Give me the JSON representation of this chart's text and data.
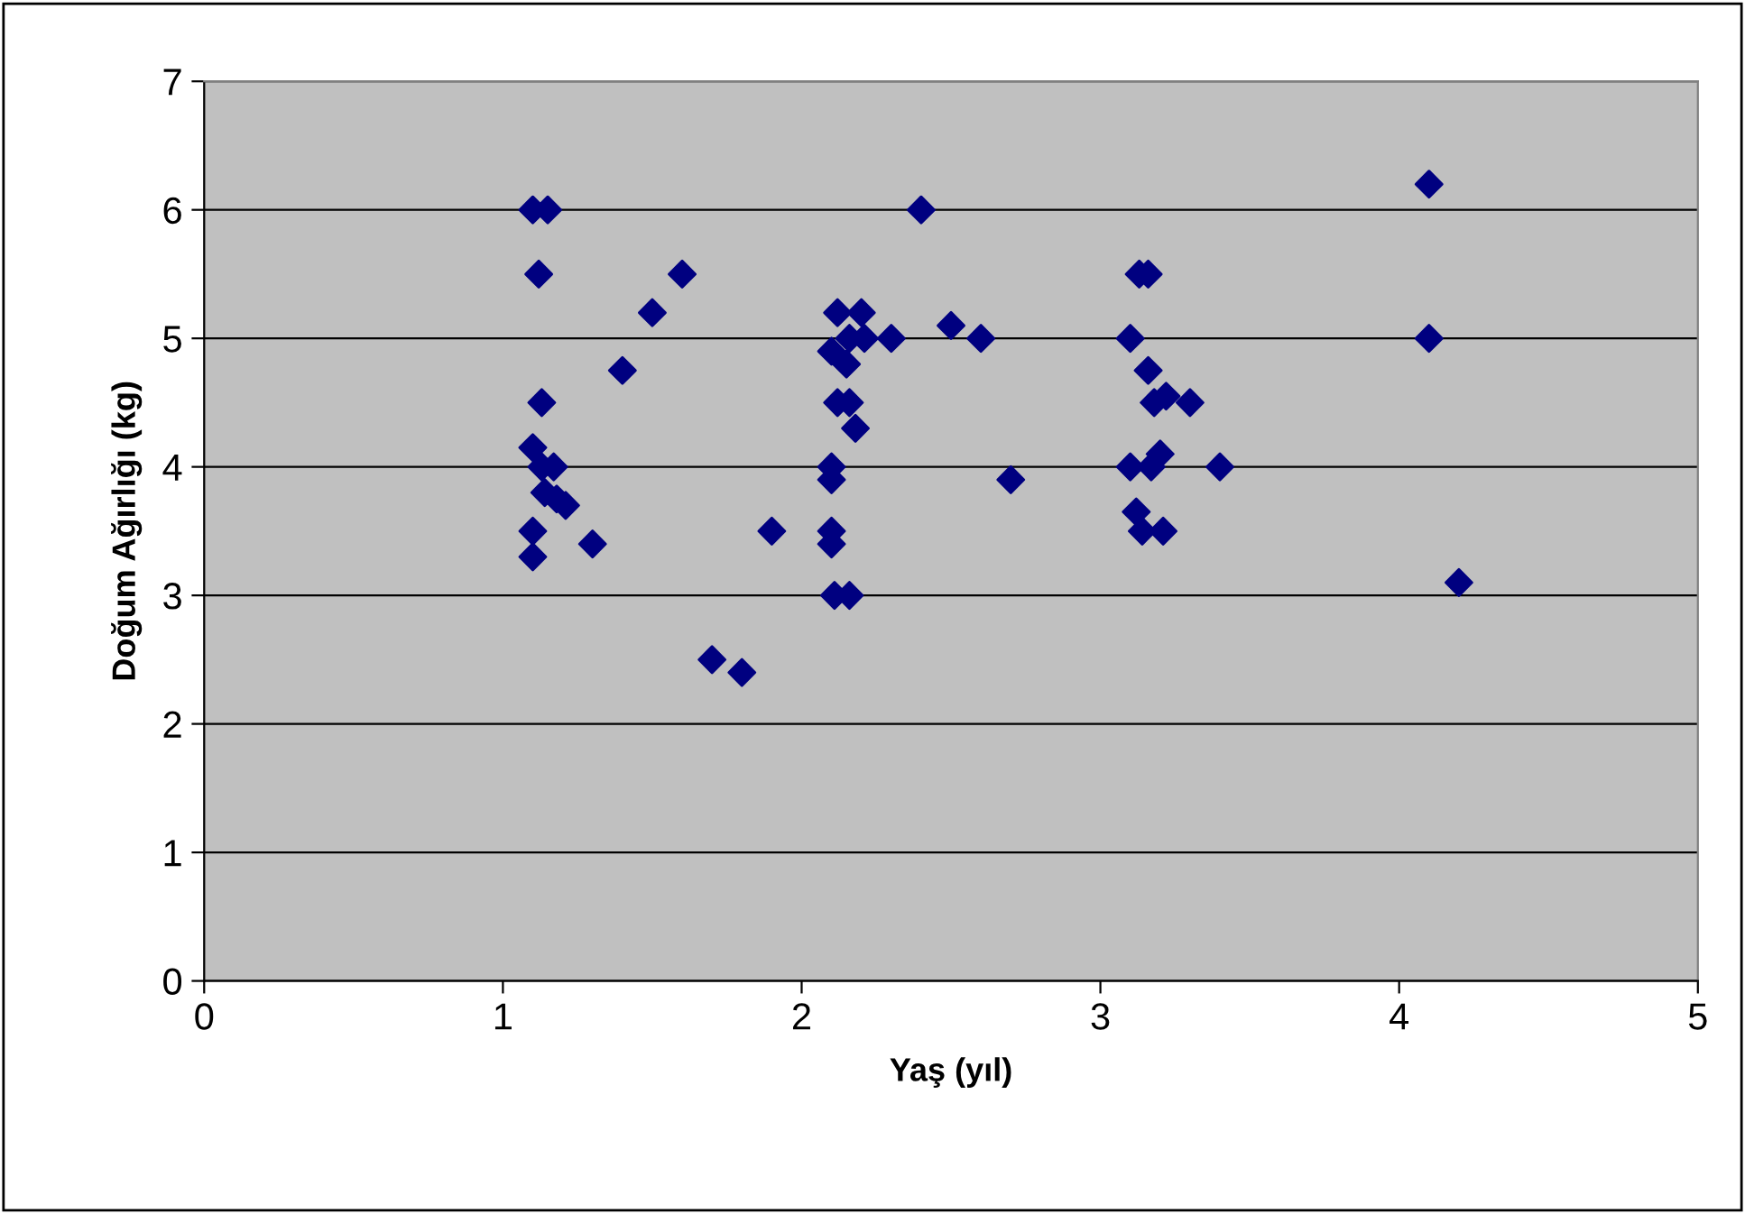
{
  "chart_data": {
    "type": "scatter",
    "xlabel": "Yaş (yıl)",
    "ylabel": "Doğum Ağırlığı (kg)",
    "xlim": [
      0,
      5
    ],
    "xticks": [
      0,
      1,
      2,
      3,
      4,
      5
    ],
    "ylim": [
      0,
      7
    ],
    "yticks": [
      0,
      1,
      2,
      3,
      4,
      5,
      6,
      7
    ],
    "grid": "y",
    "marker": "diamond",
    "legend": false,
    "series": [
      {
        "color": "#000080",
        "x": [
          1.1,
          1.15,
          1.12,
          1.5,
          1.6,
          1.4,
          1.13,
          1.1,
          1.13,
          1.17,
          1.14,
          1.18,
          1.21,
          1.1,
          1.1,
          1.3,
          1.9,
          1.7,
          1.8,
          2.4,
          2.12,
          2.2,
          2.1,
          2.16,
          2.15,
          2.21,
          2.3,
          2.5,
          2.6,
          2.12,
          2.16,
          2.18,
          2.1,
          2.1,
          2.7,
          2.1,
          2.1,
          2.11,
          2.16,
          4.1,
          3.13,
          3.16,
          3.1,
          4.1,
          3.16,
          3.18,
          3.22,
          3.3,
          3.1,
          3.17,
          3.2,
          3.4,
          3.12,
          3.14,
          3.21,
          4.2
        ],
        "values": [
          6,
          6,
          5.5,
          5.2,
          5.5,
          4.75,
          4.5,
          4.15,
          4.0,
          4.0,
          3.8,
          3.75,
          3.7,
          3.5,
          3.3,
          3.4,
          3.5,
          2.5,
          2.4,
          6,
          5.2,
          5.2,
          4.9,
          5.0,
          4.8,
          5.0,
          5.0,
          5.1,
          5.0,
          4.5,
          4.5,
          4.3,
          4.0,
          3.9,
          3.9,
          3.5,
          3.4,
          3.0,
          3.0,
          6.2,
          5.5,
          5.5,
          5.0,
          5.0,
          4.75,
          4.5,
          4.55,
          4.5,
          4.0,
          4.0,
          4.1,
          4.0,
          3.65,
          3.5,
          3.5,
          3.1
        ]
      }
    ]
  }
}
